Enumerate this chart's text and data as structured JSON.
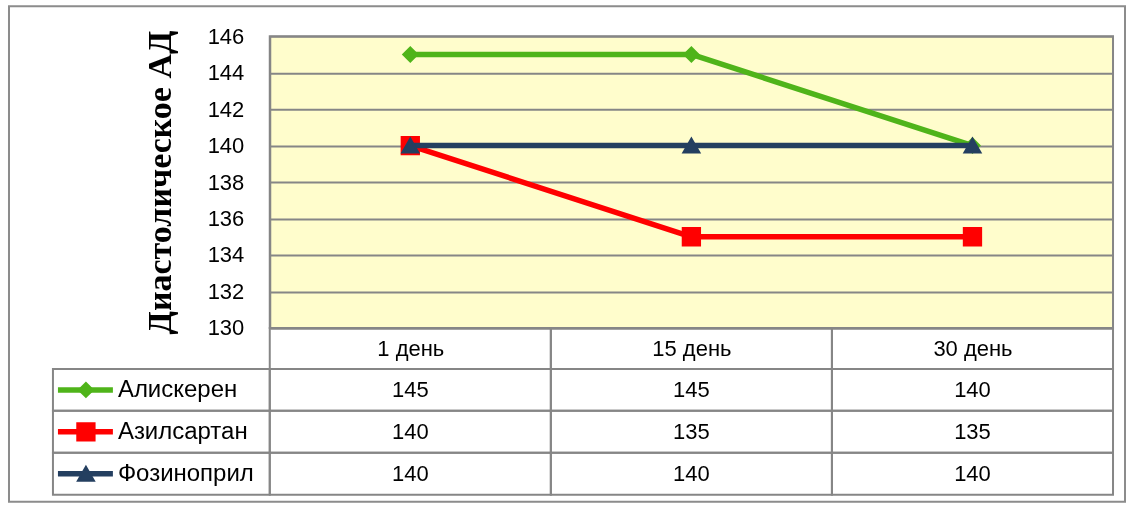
{
  "chart_data": {
    "type": "line",
    "ylabel": "Диастолическое АД",
    "categories": [
      "1 день",
      "15 день",
      "30 день"
    ],
    "series": [
      {
        "name": "Алискерен",
        "color": "#4fb41a",
        "marker": "diamond",
        "values": [
          145,
          145,
          140
        ]
      },
      {
        "name": "Азилсартан",
        "color": "#ff0000",
        "marker": "square",
        "values": [
          140,
          135,
          135
        ]
      },
      {
        "name": "Фозиноприл",
        "color": "#243f60",
        "marker": "triangle",
        "values": [
          140,
          140,
          140
        ]
      }
    ],
    "ylim": [
      130,
      146
    ],
    "yticks": [
      130,
      132,
      134,
      136,
      138,
      140,
      142,
      144,
      146
    ],
    "grid": "y",
    "legend": "bottom",
    "data_labels": true,
    "line_style": "solid"
  }
}
